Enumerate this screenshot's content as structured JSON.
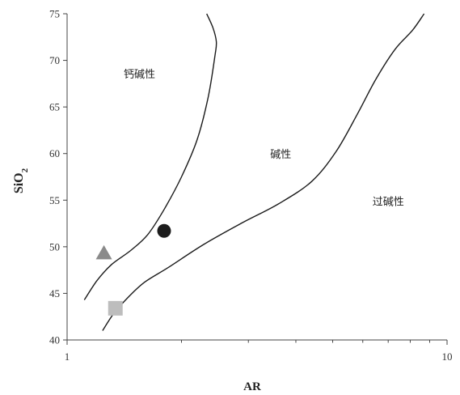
{
  "chart_data": {
    "type": "scatter",
    "xlabel": "AR",
    "ylabel_main": "SiO",
    "ylabel_sub": "2",
    "x_scale": "log",
    "xlim": [
      1,
      10
    ],
    "ylim": [
      40,
      75
    ],
    "x_ticks": [
      {
        "value": 1,
        "label": "1"
      },
      {
        "value": 10,
        "label": "10"
      }
    ],
    "x_minor_ticks": [
      2,
      3,
      4,
      5,
      6,
      7,
      8,
      9
    ],
    "y_ticks": [
      {
        "value": 40,
        "label": "40"
      },
      {
        "value": 45,
        "label": "45"
      },
      {
        "value": 50,
        "label": "50"
      },
      {
        "value": 55,
        "label": "55"
      },
      {
        "value": 60,
        "label": "60"
      },
      {
        "value": 65,
        "label": "65"
      },
      {
        "value": 70,
        "label": "70"
      },
      {
        "value": 75,
        "label": "75"
      }
    ],
    "grid": false,
    "regions": [
      {
        "label": "钙碱性",
        "x": 1.55,
        "y": 68.5
      },
      {
        "label": "碱性",
        "x": 3.65,
        "y": 59.9
      },
      {
        "label": "过碱性",
        "x": 7.0,
        "y": 54.8
      }
    ],
    "boundaries": [
      {
        "name": "calc-alkaline-alkaline",
        "points": [
          [
            1.11,
            44.3
          ],
          [
            1.2,
            46.4
          ],
          [
            1.31,
            48.1
          ],
          [
            1.47,
            49.6
          ],
          [
            1.63,
            51.3
          ],
          [
            1.8,
            54.0
          ],
          [
            2.0,
            57.5
          ],
          [
            2.2,
            61.5
          ],
          [
            2.35,
            66.0
          ],
          [
            2.45,
            70.5
          ],
          [
            2.47,
            72.0
          ],
          [
            2.42,
            73.5
          ],
          [
            2.33,
            75.0
          ]
        ]
      },
      {
        "name": "alkaline-peralkaline",
        "points": [
          [
            1.24,
            41.0
          ],
          [
            1.33,
            42.9
          ],
          [
            1.45,
            44.6
          ],
          [
            1.6,
            46.2
          ],
          [
            1.85,
            47.8
          ],
          [
            2.3,
            50.3
          ],
          [
            2.9,
            52.6
          ],
          [
            3.6,
            54.6
          ],
          [
            4.4,
            57.0
          ],
          [
            5.1,
            60.2
          ],
          [
            5.8,
            64.2
          ],
          [
            6.5,
            68.0
          ],
          [
            7.3,
            71.2
          ],
          [
            8.1,
            73.2
          ],
          [
            8.7,
            75.0
          ]
        ]
      }
    ],
    "points": [
      {
        "shape": "triangle",
        "x": 1.25,
        "y": 49.3,
        "color": "#8a8a8a"
      },
      {
        "shape": "circle",
        "x": 1.8,
        "y": 51.7,
        "color": "#1c1c1c"
      },
      {
        "shape": "square",
        "x": 1.34,
        "y": 43.4,
        "color": "#bdbdbd"
      }
    ]
  }
}
